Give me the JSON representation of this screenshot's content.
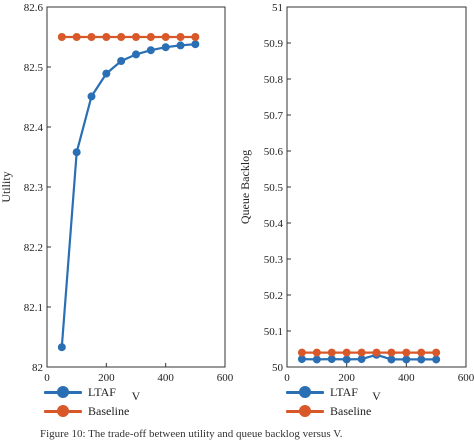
{
  "chart_data": [
    {
      "type": "line",
      "xlabel": "V",
      "ylabel": "Utility",
      "xlim": [
        0,
        600
      ],
      "ylim": [
        82,
        82.6
      ],
      "xticks": [
        "0",
        "200",
        "400",
        "600"
      ],
      "yticks": [
        "82",
        "82.1",
        "82.2",
        "82.3",
        "82.4",
        "82.5",
        "82.6"
      ],
      "x": [
        50,
        100,
        150,
        200,
        250,
        300,
        350,
        400,
        450,
        500
      ],
      "series": [
        {
          "name": "LTAF",
          "color": "#2a6fb4",
          "values": [
            82.033,
            82.358,
            82.451,
            82.489,
            82.51,
            82.521,
            82.528,
            82.533,
            82.536,
            82.538
          ]
        },
        {
          "name": "Baseline",
          "color": "#d9582a",
          "values": [
            82.55,
            82.55,
            82.55,
            82.55,
            82.55,
            82.55,
            82.55,
            82.55,
            82.55,
            82.55
          ]
        }
      ],
      "grid": false,
      "legend": "below"
    },
    {
      "type": "line",
      "xlabel": "V",
      "ylabel": "Queue Backlog",
      "xlim": [
        0,
        600
      ],
      "ylim": [
        50,
        51
      ],
      "xticks": [
        "0",
        "200",
        "400",
        "600"
      ],
      "yticks": [
        "50",
        "50.1",
        "50.2",
        "50.3",
        "50.4",
        "50.5",
        "50.6",
        "50.7",
        "50.8",
        "50.9",
        "51"
      ],
      "x": [
        50,
        100,
        150,
        200,
        250,
        300,
        350,
        400,
        450,
        500
      ],
      "series": [
        {
          "name": "LTAF",
          "color": "#2a6fb4",
          "values": [
            50.022,
            50.021,
            50.022,
            50.021,
            50.022,
            50.034,
            50.021,
            50.021,
            50.021,
            50.021
          ]
        },
        {
          "name": "Baseline",
          "color": "#d9582a",
          "values": [
            50.04,
            50.04,
            50.04,
            50.04,
            50.04,
            50.04,
            50.04,
            50.04,
            50.04,
            50.04
          ]
        }
      ],
      "grid": false,
      "legend": "below"
    }
  ],
  "legends": [
    {
      "items": [
        {
          "label": "LTAF",
          "color": "#2a6fb4"
        },
        {
          "label": "Baseline",
          "color": "#d9582a"
        }
      ]
    },
    {
      "items": [
        {
          "label": "LTAF",
          "color": "#2a6fb4"
        },
        {
          "label": "Baseline",
          "color": "#d9582a"
        }
      ]
    }
  ],
  "caption": "Figure 10: The trade-off between utility and queue backlog versus V."
}
